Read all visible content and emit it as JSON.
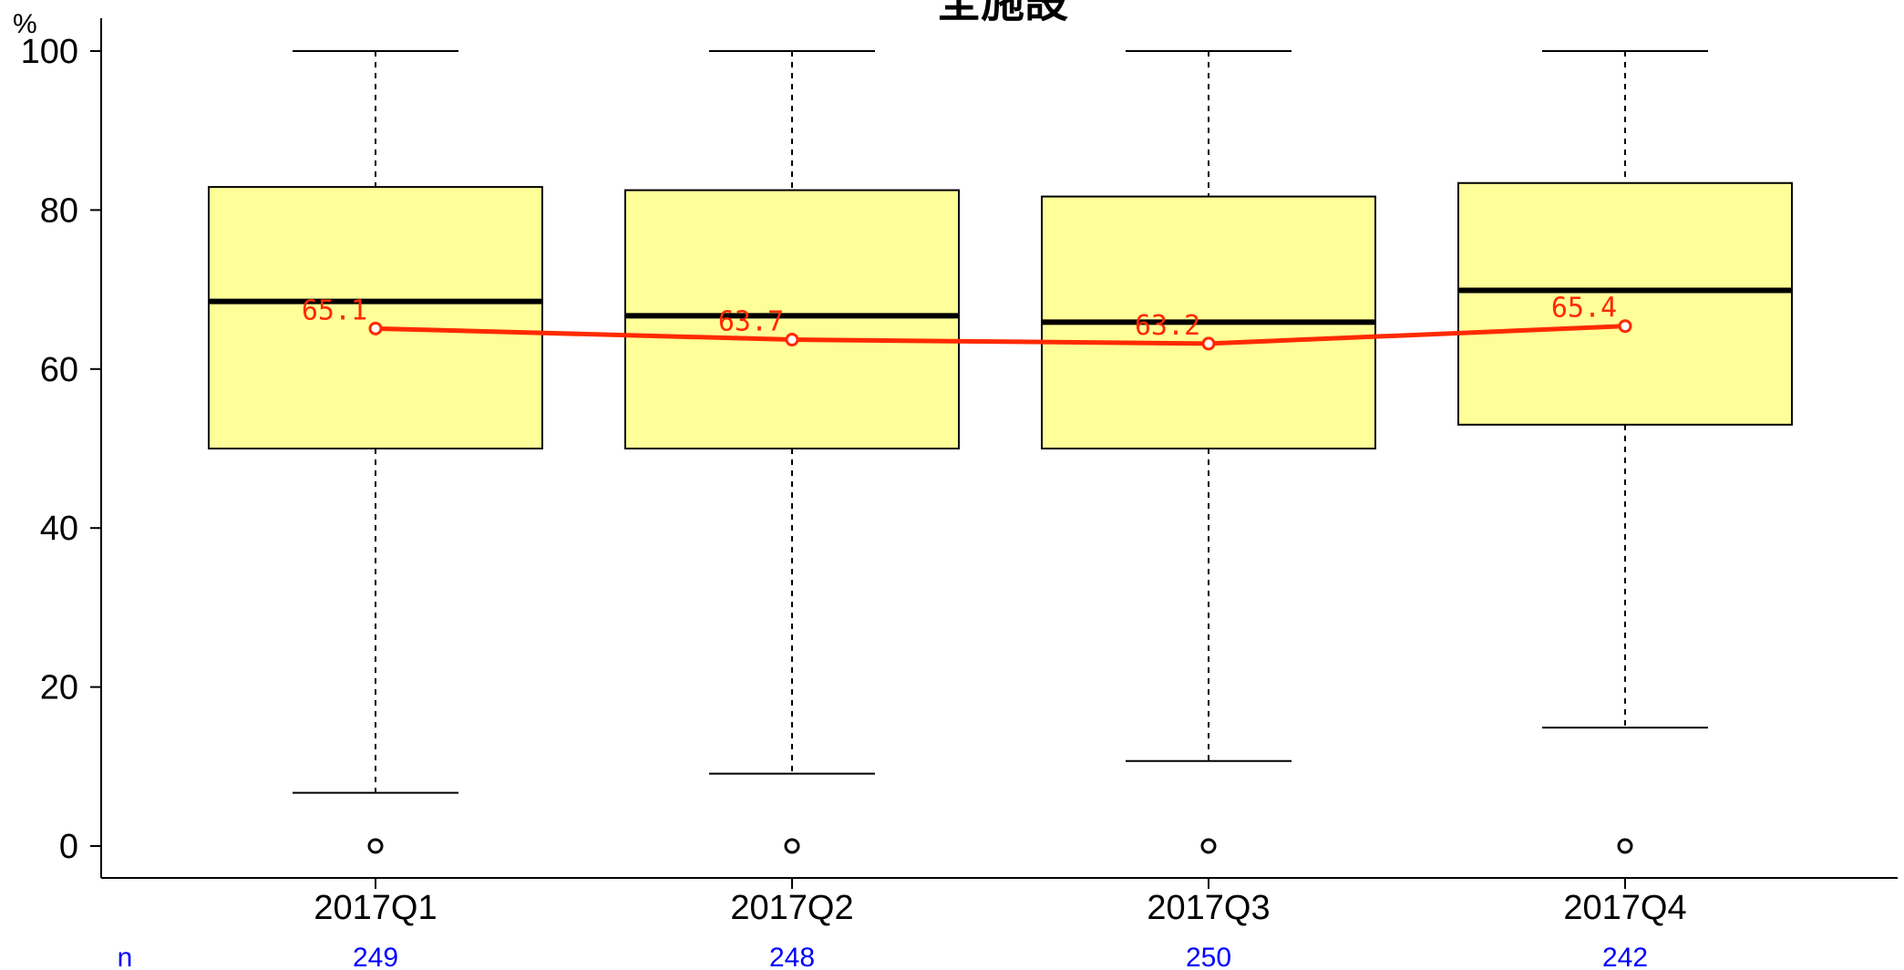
{
  "chart_data": {
    "type": "box",
    "title": "全施設",
    "ylabel": "%",
    "ylim": [
      0,
      100
    ],
    "yticks": [
      0,
      20,
      40,
      60,
      80,
      100
    ],
    "categories": [
      "2017Q1",
      "2017Q2",
      "2017Q3",
      "2017Q4"
    ],
    "boxes": [
      {
        "whisker_low": 6.7,
        "q1": 50.0,
        "median": 68.5,
        "q3": 82.9,
        "whisker_high": 100,
        "outliers": [
          0
        ]
      },
      {
        "whisker_low": 9.1,
        "q1": 50.0,
        "median": 66.7,
        "q3": 82.5,
        "whisker_high": 100,
        "outliers": [
          0
        ]
      },
      {
        "whisker_low": 10.7,
        "q1": 50.0,
        "median": 65.9,
        "q3": 81.7,
        "whisker_high": 100,
        "outliers": [
          0
        ]
      },
      {
        "whisker_low": 14.9,
        "q1": 53.0,
        "median": 69.9,
        "q3": 83.4,
        "whisker_high": 100,
        "outliers": [
          0
        ]
      }
    ],
    "mean_line": {
      "values": [
        65.1,
        63.7,
        63.2,
        65.4
      ],
      "labels": [
        "65.1",
        "63.7",
        "63.2",
        "65.4"
      ]
    },
    "n_label": "n",
    "n_values": [
      "249",
      "248",
      "250",
      "242"
    ],
    "colors": {
      "box_fill": "#ffff99",
      "mean_line": "#ff2a00",
      "n_text": "#0000ff"
    }
  }
}
